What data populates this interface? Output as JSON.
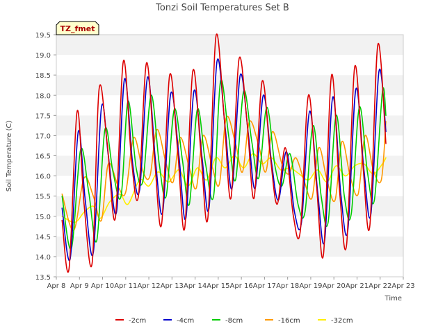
{
  "chart_data": {
    "type": "line",
    "title": "Tonzi Soil Temperatures Set B",
    "xlabel": "Time",
    "ylabel": "Soil Temperature (C)",
    "badge": "TZ_fmet",
    "xlim": [
      8,
      23
    ],
    "ylim": [
      13.5,
      19.5
    ],
    "x_ticks": [
      {
        "v": 8,
        "label": "Apr 8"
      },
      {
        "v": 9,
        "label": "Apr 9"
      },
      {
        "v": 10,
        "label": "Apr 10"
      },
      {
        "v": 11,
        "label": "Apr 11"
      },
      {
        "v": 12,
        "label": "Apr 12"
      },
      {
        "v": 13,
        "label": "Apr 13"
      },
      {
        "v": 14,
        "label": "Apr 14"
      },
      {
        "v": 15,
        "label": "Apr 15"
      },
      {
        "v": 16,
        "label": "Apr 16"
      },
      {
        "v": 17,
        "label": "Apr 17"
      },
      {
        "v": 18,
        "label": "Apr 18"
      },
      {
        "v": 19,
        "label": "Apr 19"
      },
      {
        "v": 20,
        "label": "Apr 20"
      },
      {
        "v": 21,
        "label": "Apr 21"
      },
      {
        "v": 22,
        "label": "Apr 22"
      },
      {
        "v": 23,
        "label": "Apr 23"
      }
    ],
    "y_ticks": [
      {
        "v": 13.5,
        "label": "13.5"
      },
      {
        "v": 14.0,
        "label": "14.0"
      },
      {
        "v": 14.5,
        "label": "14.5"
      },
      {
        "v": 15.0,
        "label": "15.0"
      },
      {
        "v": 15.5,
        "label": "15.5"
      },
      {
        "v": 16.0,
        "label": "16.0"
      },
      {
        "v": 16.5,
        "label": "16.5"
      },
      {
        "v": 17.0,
        "label": "17.0"
      },
      {
        "v": 17.5,
        "label": "17.5"
      },
      {
        "v": 18.0,
        "label": "18.0"
      },
      {
        "v": 18.5,
        "label": "18.5"
      },
      {
        "v": 19.0,
        "label": "19.0"
      },
      {
        "v": 19.5,
        "label": "19.5"
      }
    ],
    "grid": "horizontal bands",
    "legend_position": "bottom",
    "series": [
      {
        "name": "-2cm",
        "color": "#dd0000",
        "x": [
          8.25,
          8.55,
          8.9,
          9.2,
          9.55,
          9.85,
          10.2,
          10.55,
          10.9,
          11.25,
          11.55,
          11.9,
          12.25,
          12.55,
          12.9,
          13.25,
          13.55,
          13.9,
          14.25,
          14.55,
          14.9,
          15.25,
          15.55,
          15.9,
          16.25,
          16.55,
          16.9,
          17.25,
          17.55,
          17.9,
          18.25,
          18.55,
          18.9,
          19.25,
          19.55,
          19.9,
          20.25,
          20.55,
          20.9,
          21.25,
          21.55,
          21.9,
          22.25
        ],
        "y": [
          14.9,
          13.7,
          17.6,
          15.3,
          13.85,
          18.15,
          16.8,
          14.95,
          18.85,
          16.4,
          15.5,
          18.8,
          16.4,
          14.8,
          18.5,
          16.6,
          14.7,
          18.6,
          16.6,
          14.95,
          19.45,
          17.5,
          15.45,
          18.9,
          17.3,
          15.45,
          18.35,
          16.5,
          15.3,
          16.7,
          15.0,
          14.65,
          18.0,
          15.75,
          14.05,
          18.5,
          15.6,
          14.3,
          18.7,
          16.3,
          14.75,
          19.25,
          16.8
        ]
      },
      {
        "name": "-4cm",
        "color": "#0000cc",
        "x": [
          8.25,
          8.6,
          8.95,
          9.25,
          9.6,
          9.95,
          10.25,
          10.6,
          10.95,
          11.3,
          11.6,
          11.95,
          12.3,
          12.6,
          12.95,
          13.3,
          13.6,
          13.95,
          14.3,
          14.6,
          14.95,
          15.3,
          15.6,
          15.95,
          16.3,
          16.6,
          16.95,
          17.3,
          17.6,
          17.95,
          18.3,
          18.6,
          18.95,
          19.3,
          19.6,
          19.95,
          20.3,
          20.6,
          20.95,
          21.3,
          21.6,
          21.95,
          22.25
        ],
        "y": [
          15.2,
          13.95,
          17.1,
          15.4,
          14.1,
          17.7,
          16.5,
          15.1,
          18.4,
          16.3,
          15.65,
          18.45,
          16.3,
          15.1,
          18.05,
          16.5,
          14.95,
          18.1,
          16.45,
          15.2,
          18.85,
          17.2,
          15.7,
          18.5,
          17.05,
          15.7,
          18.0,
          16.35,
          15.4,
          16.6,
          15.1,
          14.85,
          17.6,
          15.6,
          14.4,
          17.95,
          15.55,
          14.65,
          18.15,
          16.15,
          15.05,
          18.6,
          17.1
        ]
      },
      {
        "name": "-8cm",
        "color": "#00cc00",
        "x": [
          8.25,
          8.65,
          9.05,
          9.4,
          9.75,
          10.1,
          10.45,
          10.8,
          11.1,
          11.45,
          11.75,
          12.1,
          12.45,
          12.75,
          13.1,
          13.45,
          13.75,
          14.1,
          14.45,
          14.8,
          15.1,
          15.45,
          15.75,
          16.1,
          16.45,
          16.75,
          17.1,
          17.45,
          17.75,
          18.1,
          18.45,
          18.75,
          19.1,
          19.45,
          19.75,
          20.1,
          20.45,
          20.75,
          21.1,
          21.45,
          21.75,
          22.1,
          22.25
        ],
        "y": [
          15.5,
          14.2,
          16.65,
          15.6,
          14.4,
          17.15,
          16.1,
          15.5,
          17.85,
          16.2,
          15.9,
          18.0,
          16.3,
          15.5,
          17.65,
          16.4,
          15.3,
          17.65,
          16.3,
          15.5,
          18.35,
          17.0,
          15.9,
          18.1,
          16.85,
          15.95,
          17.7,
          16.25,
          15.75,
          16.55,
          15.3,
          15.1,
          17.25,
          15.5,
          14.85,
          17.5,
          15.5,
          15.05,
          17.7,
          16.1,
          15.4,
          18.1,
          17.5
        ]
      },
      {
        "name": "-16cm",
        "color": "#ff9900",
        "x": [
          8.25,
          8.75,
          9.2,
          9.6,
          9.95,
          10.25,
          10.7,
          11.0,
          11.35,
          11.75,
          12.05,
          12.35,
          12.75,
          13.05,
          13.35,
          13.75,
          14.05,
          14.35,
          14.75,
          15.05,
          15.35,
          15.75,
          16.05,
          16.35,
          16.75,
          17.05,
          17.35,
          17.75,
          18.05,
          18.35,
          18.7,
          19.05,
          19.35,
          19.7,
          20.05,
          20.35,
          20.7,
          21.05,
          21.35,
          21.7,
          22.05,
          22.25
        ],
        "y": [
          15.55,
          14.65,
          15.95,
          15.5,
          14.9,
          16.3,
          15.7,
          15.6,
          16.95,
          16.1,
          16.0,
          17.15,
          16.3,
          15.85,
          16.95,
          16.2,
          15.7,
          17.0,
          16.2,
          15.8,
          17.45,
          16.8,
          16.1,
          17.35,
          16.75,
          16.1,
          17.1,
          16.3,
          16.05,
          16.45,
          15.9,
          15.45,
          16.7,
          15.9,
          15.4,
          16.85,
          16.0,
          15.55,
          17.0,
          16.15,
          15.9,
          17.35
        ]
      },
      {
        "name": "-32cm",
        "color": "#ffee00",
        "x": [
          8.25,
          8.8,
          9.2,
          9.6,
          9.9,
          10.3,
          10.75,
          11.1,
          11.6,
          12.0,
          12.4,
          12.85,
          13.3,
          13.7,
          14.1,
          14.5,
          14.9,
          15.3,
          15.7,
          16.1,
          16.5,
          16.9,
          17.3,
          17.7,
          18.1,
          18.5,
          18.9,
          19.3,
          19.7,
          20.1,
          20.5,
          20.9,
          21.3,
          21.7,
          22.1,
          22.25
        ],
        "y": [
          15.0,
          14.85,
          15.1,
          15.25,
          14.95,
          15.35,
          15.55,
          15.3,
          15.9,
          15.75,
          16.1,
          15.85,
          16.15,
          15.75,
          16.2,
          15.9,
          16.45,
          16.2,
          16.5,
          16.2,
          16.55,
          16.3,
          16.45,
          16.15,
          16.2,
          16.05,
          15.9,
          16.15,
          15.85,
          16.25,
          16.0,
          16.25,
          16.3,
          16.05,
          16.3,
          16.45
        ]
      }
    ]
  }
}
